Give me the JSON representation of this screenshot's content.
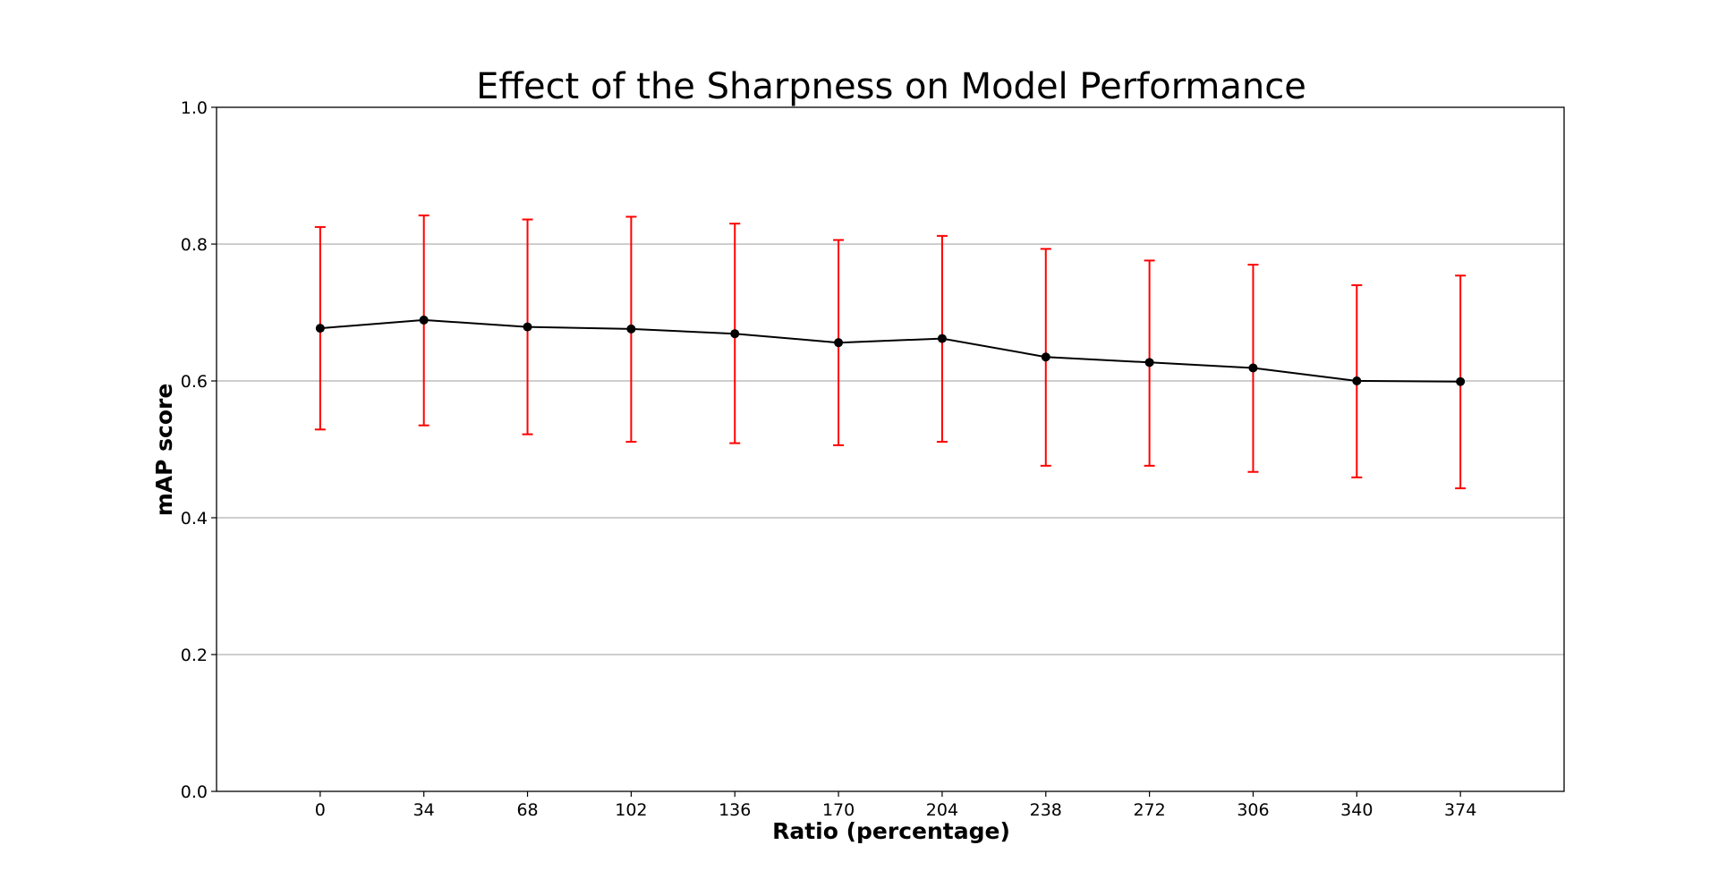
{
  "chart_data": {
    "type": "line",
    "title": "Effect of the Sharpness on Model Performance",
    "xlabel": "Ratio (percentage)",
    "ylabel": "mAP score",
    "x": [
      0,
      34,
      68,
      102,
      136,
      170,
      204,
      238,
      272,
      306,
      340,
      374
    ],
    "x_tick_labels": [
      "0",
      "34",
      "68",
      "102",
      "136",
      "170",
      "204",
      "238",
      "272",
      "306",
      "340",
      "374"
    ],
    "y_ticks": [
      0.0,
      0.2,
      0.4,
      0.6,
      0.8,
      1.0
    ],
    "y_tick_labels": [
      "0.0",
      "0.2",
      "0.4",
      "0.6",
      "0.8",
      "1.0"
    ],
    "ylim": [
      0.0,
      1.0
    ],
    "xlim": [
      -34,
      408
    ],
    "grid": "horizontal",
    "series": [
      {
        "values": [
          0.677,
          0.689,
          0.679,
          0.676,
          0.669,
          0.656,
          0.662,
          0.635,
          0.627,
          0.619,
          0.6,
          0.599
        ],
        "error_low": [
          0.529,
          0.535,
          0.522,
          0.511,
          0.509,
          0.506,
          0.511,
          0.476,
          0.476,
          0.467,
          0.459,
          0.443
        ],
        "error_high": [
          0.825,
          0.842,
          0.836,
          0.84,
          0.83,
          0.806,
          0.812,
          0.793,
          0.776,
          0.77,
          0.74,
          0.754
        ]
      }
    ],
    "colors": {
      "line": "#000000",
      "marker": "#000000",
      "errorbar": "#ff0000",
      "grid": "#b0b0b0"
    }
  }
}
